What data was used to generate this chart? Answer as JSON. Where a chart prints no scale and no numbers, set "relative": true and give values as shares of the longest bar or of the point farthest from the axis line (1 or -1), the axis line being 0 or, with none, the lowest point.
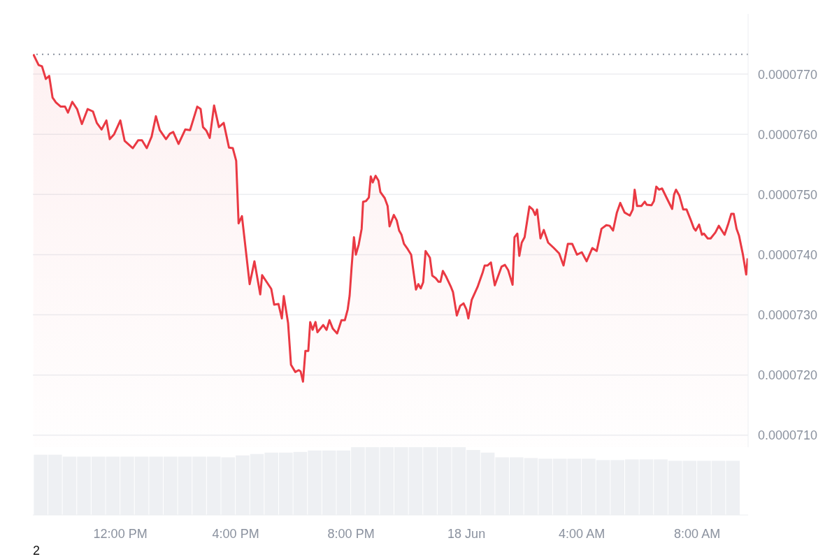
{
  "chart_data": [
    {
      "type": "area",
      "x": [
        "--06-17T08:59",
        "--06-17T09:10",
        "--06-17T09:17",
        "--06-17T09:25",
        "--06-17T09:32",
        "--06-17T09:39",
        "--06-17T09:46",
        "--06-17T09:56",
        "--06-17T10:05",
        "--06-17T10:11",
        "--06-17T10:20",
        "--06-17T10:30",
        "--06-17T10:40",
        "--06-17T10:52",
        "--06-17T11:03",
        "--06-17T11:11",
        "--06-17T11:21",
        "--06-17T11:31",
        "--06-17T11:38",
        "--06-17T11:47",
        "--06-17T12:00",
        "--06-17T12:09",
        "--06-17T12:26",
        "--06-17T12:37",
        "--06-17T12:45",
        "--06-17T12:55",
        "--06-17T13:05",
        "--06-17T13:14",
        "--06-17T13:22",
        "--06-17T13:35",
        "--06-17T13:43",
        "--06-17T13:50",
        "--06-17T14:01",
        "--06-17T14:15",
        "--06-17T14:25",
        "--06-17T14:40",
        "--06-17T14:47",
        "--06-17T14:52",
        "--06-17T14:59",
        "--06-17T15:06",
        "--06-17T15:15",
        "--06-17T15:25",
        "--06-17T15:35",
        "--06-17T15:46",
        "--06-17T15:54",
        "--06-17T16:01",
        "--06-17T16:06",
        "--06-17T16:13",
        "--06-17T16:29",
        "--06-17T16:39",
        "--06-17T16:51",
        "--06-17T16:55",
        "--06-17T17:14",
        "--06-17T17:20",
        "--06-17T17:29",
        "--06-17T17:36",
        "--06-17T17:40",
        "--06-17T17:49",
        "--06-17T17:55",
        "--06-17T18:04",
        "--06-17T18:11",
        "--06-17T18:15",
        "--06-17T18:20",
        "--06-17T18:25",
        "--06-17T18:31",
        "--06-17T18:35",
        "--06-17T18:40",
        "--06-17T18:46",
        "--06-17T18:50",
        "--06-17T19:02",
        "--06-17T19:09",
        "--06-17T19:15",
        "--06-17T19:22",
        "--06-17T19:31",
        "--06-17T19:40",
        "--06-17T19:47",
        "--06-17T19:53",
        "--06-17T19:57",
        "--06-17T20:01",
        "--06-17T20:06",
        "--06-17T20:10",
        "--06-17T20:16",
        "--06-17T20:22",
        "--06-17T20:25",
        "--06-17T20:31",
        "--06-17T20:37",
        "--06-17T20:41",
        "--06-17T20:45",
        "--06-17T20:51",
        "--06-17T20:57",
        "--06-17T21:01",
        "--06-17T21:10",
        "--06-17T21:16",
        "--06-17T21:20",
        "--06-17T21:29",
        "--06-17T21:35",
        "--06-17T21:40",
        "--06-17T21:45",
        "--06-17T21:50",
        "--06-17T21:58",
        "--06-17T22:05",
        "--06-17T22:15",
        "--06-17T22:20",
        "--06-17T22:25",
        "--06-17T22:30",
        "--06-17T22:35",
        "--06-17T22:44",
        "--06-17T22:49",
        "--06-17T22:56",
        "--06-17T23:02",
        "--06-17T23:06",
        "--06-17T23:11",
        "--06-17T23:18",
        "--06-17T23:28",
        "--06-17T23:32",
        "--06-17T23:40",
        "--06-17T23:47",
        "--06-17T23:54",
        "--06-18T00:00",
        "--06-18T00:04",
        "--06-18T00:11",
        "--06-18T00:23",
        "--06-18T00:34",
        "--06-18T00:38",
        "--06-18T00:44",
        "--06-18T00:51",
        "--06-18T00:59",
        "--06-18T01:13",
        "--06-18T01:20",
        "--06-18T01:27",
        "--06-18T01:36",
        "--06-18T01:40",
        "--06-18T01:46",
        "--06-18T01:50",
        "--06-18T01:55",
        "--06-18T02:01",
        "--06-18T02:11",
        "--06-18T02:18",
        "--06-18T02:23",
        "--06-18T02:27",
        "--06-18T02:34",
        "--06-18T02:41",
        "--06-18T02:50",
        "--06-18T03:02",
        "--06-18T03:13",
        "--06-18T03:22",
        "--06-18T03:31",
        "--06-18T03:40",
        "--06-18T03:50",
        "--06-18T04:00",
        "--06-18T04:10",
        "--06-18T04:22",
        "--06-18T04:31",
        "--06-18T04:41",
        "--06-18T04:51",
        "--06-18T04:58",
        "--06-18T05:05",
        "--06-18T05:13",
        "--06-18T05:20",
        "--06-18T05:29",
        "--06-18T05:40",
        "--06-18T05:46",
        "--06-18T05:50",
        "--06-18T05:55",
        "--06-18T06:04",
        "--06-18T06:11",
        "--06-18T06:15",
        "--06-18T06:25",
        "--06-18T06:30",
        "--06-18T06:35",
        "--06-18T06:41",
        "--06-18T06:47",
        "--06-18T06:58",
        "--06-18T07:08",
        "--06-18T07:12",
        "--06-18T07:16",
        "--06-18T07:23",
        "--06-18T07:31",
        "--06-18T07:38",
        "--06-18T07:47",
        "--06-18T07:53",
        "--06-18T07:57",
        "--06-18T08:04",
        "--06-18T08:10",
        "--06-18T08:14",
        "--06-18T08:22",
        "--06-18T08:28",
        "--06-18T08:38",
        "--06-18T08:45",
        "--06-18T08:57",
        "--06-18T09:05",
        "--06-18T09:11",
        "--06-18T09:16",
        "--06-18T09:22",
        "--06-18T09:27",
        "--06-18T09:35",
        "--06-18T09:42",
        "--06-18T09:45"
      ],
      "series": [
        {
          "color": "#ea3943",
          "values": [
            7.733e-05,
            7.715e-05,
            7.713e-05,
            7.692e-05,
            7.697e-05,
            7.661e-05,
            7.653e-05,
            7.646e-05,
            7.646e-05,
            7.636e-05,
            7.654e-05,
            7.642e-05,
            7.617e-05,
            7.642e-05,
            7.638e-05,
            7.619e-05,
            7.608e-05,
            7.623e-05,
            7.592e-05,
            7.6e-05,
            7.623e-05,
            7.589e-05,
            7.577e-05,
            7.59e-05,
            7.59e-05,
            7.577e-05,
            7.596e-05,
            7.63e-05,
            7.607e-05,
            7.592e-05,
            7.601e-05,
            7.604e-05,
            7.584e-05,
            7.608e-05,
            7.607e-05,
            7.646e-05,
            7.642e-05,
            7.612e-05,
            7.606e-05,
            7.594e-05,
            7.648e-05,
            7.612e-05,
            7.619e-05,
            7.578e-05,
            7.577e-05,
            7.556e-05,
            7.452e-05,
            7.464e-05,
            7.351e-05,
            7.389e-05,
            7.334e-05,
            7.366e-05,
            7.343e-05,
            7.317e-05,
            7.318e-05,
            7.294e-05,
            7.331e-05,
            7.286e-05,
            7.217e-05,
            7.205e-05,
            7.208e-05,
            7.206e-05,
            7.189e-05,
            7.24e-05,
            7.24e-05,
            7.288e-05,
            7.275e-05,
            7.288e-05,
            7.271e-05,
            7.283e-05,
            7.275e-05,
            7.291e-05,
            7.277e-05,
            7.269e-05,
            7.291e-05,
            7.291e-05,
            7.309e-05,
            7.332e-05,
            7.378e-05,
            7.429e-05,
            7.4e-05,
            7.417e-05,
            7.443e-05,
            7.488e-05,
            7.489e-05,
            7.495e-05,
            7.53e-05,
            7.52e-05,
            7.531e-05,
            7.523e-05,
            7.504e-05,
            7.494e-05,
            7.481e-05,
            7.447e-05,
            7.466e-05,
            7.457e-05,
            7.44e-05,
            7.433e-05,
            7.418e-05,
            7.409e-05,
            7.4e-05,
            7.342e-05,
            7.351e-05,
            7.344e-05,
            7.354e-05,
            7.406e-05,
            7.395e-05,
            7.365e-05,
            7.361e-05,
            7.355e-05,
            7.355e-05,
            7.373e-05,
            7.363e-05,
            7.346e-05,
            7.338e-05,
            7.299e-05,
            7.315e-05,
            7.319e-05,
            7.309e-05,
            7.294e-05,
            7.325e-05,
            7.346e-05,
            7.371e-05,
            7.382e-05,
            7.382e-05,
            7.387e-05,
            7.349e-05,
            7.38e-05,
            7.383e-05,
            7.374e-05,
            7.35e-05,
            7.429e-05,
            7.435e-05,
            7.398e-05,
            7.42e-05,
            7.429e-05,
            7.48e-05,
            7.475e-05,
            7.466e-05,
            7.475e-05,
            7.427e-05,
            7.441e-05,
            7.42e-05,
            7.411e-05,
            7.402e-05,
            7.382e-05,
            7.418e-05,
            7.418e-05,
            7.4e-05,
            7.404e-05,
            7.389e-05,
            7.411e-05,
            7.406e-05,
            7.443e-05,
            7.449e-05,
            7.448e-05,
            7.44e-05,
            7.47e-05,
            7.486e-05,
            7.47e-05,
            7.465e-05,
            7.475e-05,
            7.508e-05,
            7.481e-05,
            7.481e-05,
            7.488e-05,
            7.483e-05,
            7.482e-05,
            7.489e-05,
            7.513e-05,
            7.508e-05,
            7.51e-05,
            7.492e-05,
            7.476e-05,
            7.5e-05,
            7.508e-05,
            7.498e-05,
            7.475e-05,
            7.475e-05,
            7.457e-05,
            7.444e-05,
            7.44e-05,
            7.45e-05,
            7.433e-05,
            7.435e-05,
            7.427e-05,
            7.427e-05,
            7.437e-05,
            7.448e-05,
            7.433e-05,
            7.452e-05,
            7.468e-05,
            7.468e-05,
            7.443e-05,
            7.432e-05,
            7.401e-05,
            7.367e-05,
            7.394e-05
          ]
        }
      ],
      "xlim": [
        "--06-17T08:58",
        "--06-18T09:46"
      ],
      "ylim": [
        7.08e-05,
        7.8e-05
      ],
      "yticks": [
        {
          "value": 7.1e-05,
          "label": "0.0000710"
        },
        {
          "value": 7.2e-05,
          "label": "0.0000720"
        },
        {
          "value": 7.3e-05,
          "label": "0.0000730"
        },
        {
          "value": 7.4e-05,
          "label": "0.0000740"
        },
        {
          "value": 7.5e-05,
          "label": "0.0000750"
        },
        {
          "value": 7.6e-05,
          "label": "0.0000760"
        },
        {
          "value": 7.7e-05,
          "label": "0.0000770"
        }
      ],
      "ref_lines": [
        {
          "axis": "y",
          "value": 7.733e-05,
          "color": "#8a919e",
          "line_style": "dotted"
        }
      ],
      "grid": "y",
      "tick_labels": "y"
    },
    {
      "type": "bar",
      "relative": true,
      "x": [
        "--06-17T09:15",
        "--06-17T09:45",
        "--06-17T10:15",
        "--06-17T10:45",
        "--06-17T11:15",
        "--06-17T11:45",
        "--06-17T12:15",
        "--06-17T12:45",
        "--06-17T13:15",
        "--06-17T13:45",
        "--06-17T14:15",
        "--06-17T14:45",
        "--06-17T15:15",
        "--06-17T15:45",
        "--06-17T16:15",
        "--06-17T16:45",
        "--06-17T17:15",
        "--06-17T17:45",
        "--06-17T18:15",
        "--06-17T18:45",
        "--06-17T19:15",
        "--06-17T19:45",
        "--06-17T20:15",
        "--06-17T20:45",
        "--06-17T21:15",
        "--06-17T21:45",
        "--06-17T22:15",
        "--06-17T22:45",
        "--06-17T23:15",
        "--06-17T23:45",
        "--06-18T00:15",
        "--06-18T00:45",
        "--06-18T01:15",
        "--06-18T01:45",
        "--06-18T02:15",
        "--06-18T02:45",
        "--06-18T03:15",
        "--06-18T03:45",
        "--06-18T04:15",
        "--06-18T04:45",
        "--06-18T05:15",
        "--06-18T05:45",
        "--06-18T06:15",
        "--06-18T06:45",
        "--06-18T07:15",
        "--06-18T07:45",
        "--06-18T08:15",
        "--06-18T08:45",
        "--06-18T09:15"
      ],
      "series": [
        {
          "color": "#eef0f3",
          "values": [
            0.89,
            0.89,
            0.86,
            0.86,
            0.86,
            0.86,
            0.86,
            0.86,
            0.86,
            0.86,
            0.86,
            0.86,
            0.86,
            0.85,
            0.88,
            0.9,
            0.92,
            0.92,
            0.93,
            0.95,
            0.95,
            0.95,
            1,
            1,
            1,
            1,
            1,
            1,
            1,
            1,
            0.96,
            0.92,
            0.85,
            0.85,
            0.84,
            0.83,
            0.83,
            0.83,
            0.83,
            0.81,
            0.81,
            0.82,
            0.82,
            0.82,
            0.8,
            0.8,
            0.8,
            0.8,
            0.8
          ]
        }
      ],
      "xlim": [
        "--06-17T08:58",
        "--06-18T09:46"
      ],
      "xticks": [
        {
          "value": "--06-17T12:00",
          "label": "12:00 PM"
        },
        {
          "value": "--06-17T16:00",
          "label": "4:00 PM"
        },
        {
          "value": "--06-17T20:00",
          "label": "8:00 PM"
        },
        {
          "value": "--06-18T00:00",
          "label": "18 Jun"
        },
        {
          "value": "--06-18T04:00",
          "label": "4:00 AM"
        },
        {
          "value": "--06-18T08:00",
          "label": "8:00 AM"
        }
      ],
      "annotations": [
        "2"
      ],
      "tick_labels": "x"
    }
  ]
}
